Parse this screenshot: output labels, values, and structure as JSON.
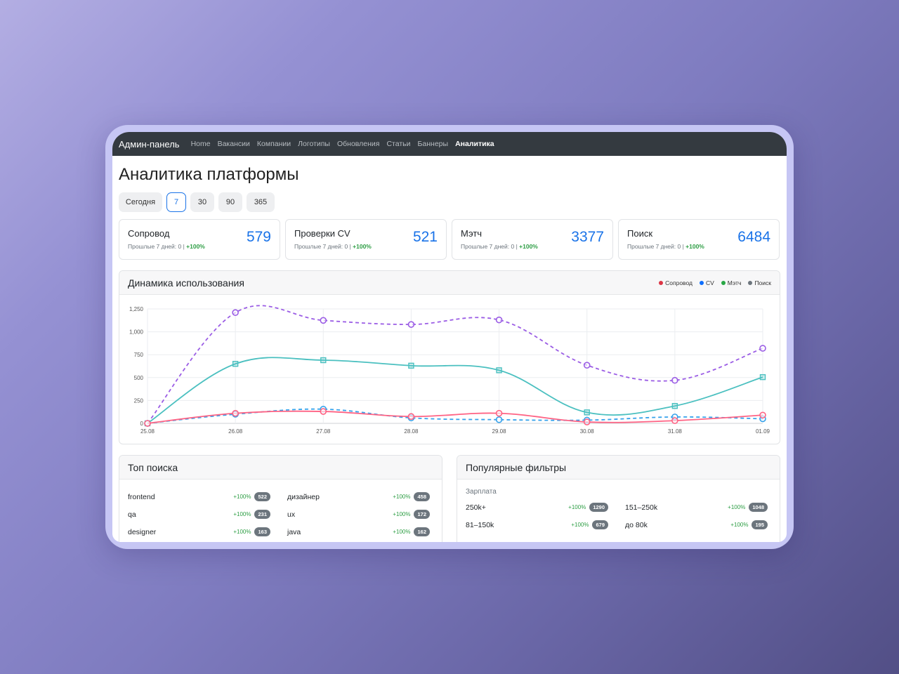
{
  "navbar": {
    "brand": "Админ-панель",
    "links": [
      "Home",
      "Вакансии",
      "Компании",
      "Логотипы",
      "Обновления",
      "Статьи",
      "Баннеры",
      "Аналитика"
    ],
    "active": "Аналитика"
  },
  "page": {
    "title": "Аналитика платформы"
  },
  "periods": {
    "items": [
      "Сегодня",
      "7",
      "30",
      "90",
      "365"
    ],
    "active": "7"
  },
  "kpis": [
    {
      "title": "Сопровод",
      "value": "579",
      "sub": "Прошлые 7 дней: 0 |",
      "delta": "+100%"
    },
    {
      "title": "Проверки CV",
      "value": "521",
      "sub": "Прошлые 7 дней: 0 |",
      "delta": "+100%"
    },
    {
      "title": "Мэтч",
      "value": "3377",
      "sub": "Прошлые 7 дней: 0 |",
      "delta": "+100%"
    },
    {
      "title": "Поиск",
      "value": "6484",
      "sub": "Прошлые 7 дней: 0 |",
      "delta": "+100%"
    }
  ],
  "usage_card": {
    "title": "Динамика использования",
    "legend": [
      {
        "name": "Сопровод",
        "color": "#dc3545"
      },
      {
        "name": "CV",
        "color": "#0d6efd"
      },
      {
        "name": "Мэтч",
        "color": "#28a745"
      },
      {
        "name": "Поиск",
        "color": "#6c757d"
      }
    ]
  },
  "chart_data": {
    "type": "line",
    "categories": [
      "25.08",
      "26.08",
      "27.08",
      "28.08",
      "29.08",
      "30.08",
      "31.08",
      "01.09"
    ],
    "ylim": [
      0,
      1250
    ],
    "yticks": [
      "0",
      "250",
      "500",
      "750",
      "1,000",
      "1,250"
    ],
    "grid": true,
    "series": [
      {
        "color": "#9b5de5",
        "dashed": true,
        "marker": "circle",
        "values": [
          0,
          1210,
          1125,
          1080,
          1130,
          635,
          470,
          820
        ]
      },
      {
        "color": "#4bc0c0",
        "dashed": false,
        "marker": "square",
        "values": [
          0,
          650,
          690,
          630,
          580,
          120,
          190,
          505
        ]
      },
      {
        "color": "#36a2eb",
        "dashed": true,
        "marker": "circle",
        "values": [
          0,
          100,
          155,
          60,
          40,
          35,
          70,
          50
        ]
      },
      {
        "color": "#ff6384",
        "dashed": false,
        "marker": "circle",
        "values": [
          0,
          110,
          130,
          75,
          110,
          15,
          30,
          90
        ]
      }
    ]
  },
  "top_search": {
    "title": "Топ поиска",
    "items": [
      {
        "term": "frontend",
        "pct": "+100%",
        "count": "522"
      },
      {
        "term": "дизайнер",
        "pct": "+100%",
        "count": "458"
      },
      {
        "term": "qa",
        "pct": "+100%",
        "count": "231"
      },
      {
        "term": "ux",
        "pct": "+100%",
        "count": "172"
      },
      {
        "term": "designer",
        "pct": "+100%",
        "count": "163"
      },
      {
        "term": "java",
        "pct": "+100%",
        "count": "162"
      }
    ]
  },
  "popular_filters": {
    "title": "Популярные фильтры",
    "group": "Зарплата",
    "items": [
      {
        "term": "250k+",
        "pct": "+100%",
        "count": "1290"
      },
      {
        "term": "151–250k",
        "pct": "+100%",
        "count": "1048"
      },
      {
        "term": "81–150k",
        "pct": "+100%",
        "count": "679"
      },
      {
        "term": "до 80k",
        "pct": "+100%",
        "count": "195"
      }
    ]
  }
}
